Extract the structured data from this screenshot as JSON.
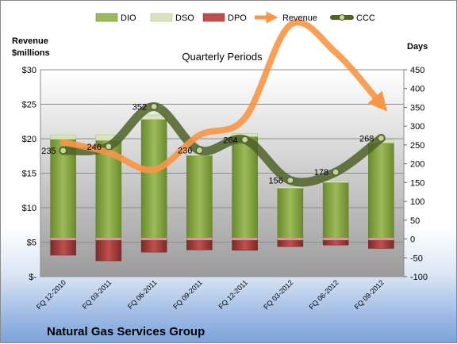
{
  "chart_data": {
    "type": "bar",
    "title": "Quarterly Periods",
    "company": "Natural Gas Services Group",
    "left_axis_title": "Revenue\n$millions",
    "right_axis_title": "Days",
    "categories": [
      "FQ 12-2010",
      "FQ 03-2011",
      "FQ 06-2011",
      "FQ 09-2011",
      "FQ 12-2011",
      "FQ 03-2012",
      "FQ 06-2012",
      "FQ 09-2012"
    ],
    "left_axis": {
      "min": 0,
      "max": 30,
      "ticks": [
        "$-",
        "$5",
        "$10",
        "$15",
        "$20",
        "$25",
        "$30"
      ]
    },
    "right_axis": {
      "min": -100,
      "max": 450,
      "ticks": [
        "-100",
        "-50",
        "0",
        "50",
        "100",
        "150",
        "200",
        "250",
        "300",
        "350",
        "400",
        "450"
      ]
    },
    "legend": [
      "DIO",
      "DSO",
      "DPO",
      "Revenue",
      "CCC"
    ],
    "legend_position": "top",
    "series": [
      {
        "name": "DIO",
        "axis": "days",
        "values": [
          265,
          262,
          318,
          222,
          272,
          135,
          150,
          255
        ],
        "color": "#77933c"
      },
      {
        "name": "DSO",
        "axis": "days",
        "values": [
          12,
          15,
          12,
          5,
          9,
          5,
          5,
          8
        ],
        "color": "#d7e4bd"
      },
      {
        "name": "DPO",
        "axis": "days",
        "values": [
          -43,
          -58,
          -35,
          -29,
          -30,
          -20,
          -16,
          -25
        ],
        "color": "#943634"
      },
      {
        "name": "Revenue",
        "axis": "revenue",
        "values": [
          19.5,
          18.0,
          15.5,
          20.5,
          23.0,
          36.5,
          32.5,
          25.0
        ],
        "color": "#f79646"
      },
      {
        "name": "CCC",
        "axis": "days",
        "values": [
          235,
          246,
          352,
          236,
          264,
          156,
          178,
          268
        ],
        "color": "#4f6228"
      }
    ],
    "ccc_labels": [
      "235",
      "246",
      "352",
      "236",
      "264",
      "156",
      "178",
      "268"
    ]
  }
}
